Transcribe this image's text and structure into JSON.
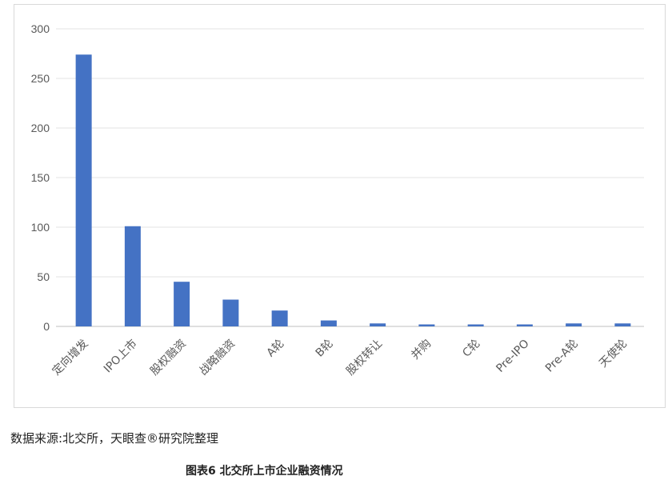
{
  "chart_data": {
    "type": "bar",
    "title": "",
    "xlabel": "",
    "ylabel": "",
    "categories": [
      "定向增发",
      "IPO上市",
      "股权融资",
      "战略融资",
      "A轮",
      "B轮",
      "股权转让",
      "并购",
      "C轮",
      "Pre-IPO",
      "Pre-A轮",
      "天使轮"
    ],
    "values": [
      274,
      101,
      45,
      27,
      16,
      6,
      3,
      2,
      2,
      2,
      3,
      3
    ],
    "ylim": [
      0,
      300
    ],
    "yticks": [
      0,
      50,
      100,
      150,
      200,
      250,
      300
    ],
    "grid": true,
    "bar_color": "#4472c4"
  },
  "source": "数据来源:北交所，天眼查®研究院整理",
  "caption": "图表6  北交所上市企业融资情况"
}
